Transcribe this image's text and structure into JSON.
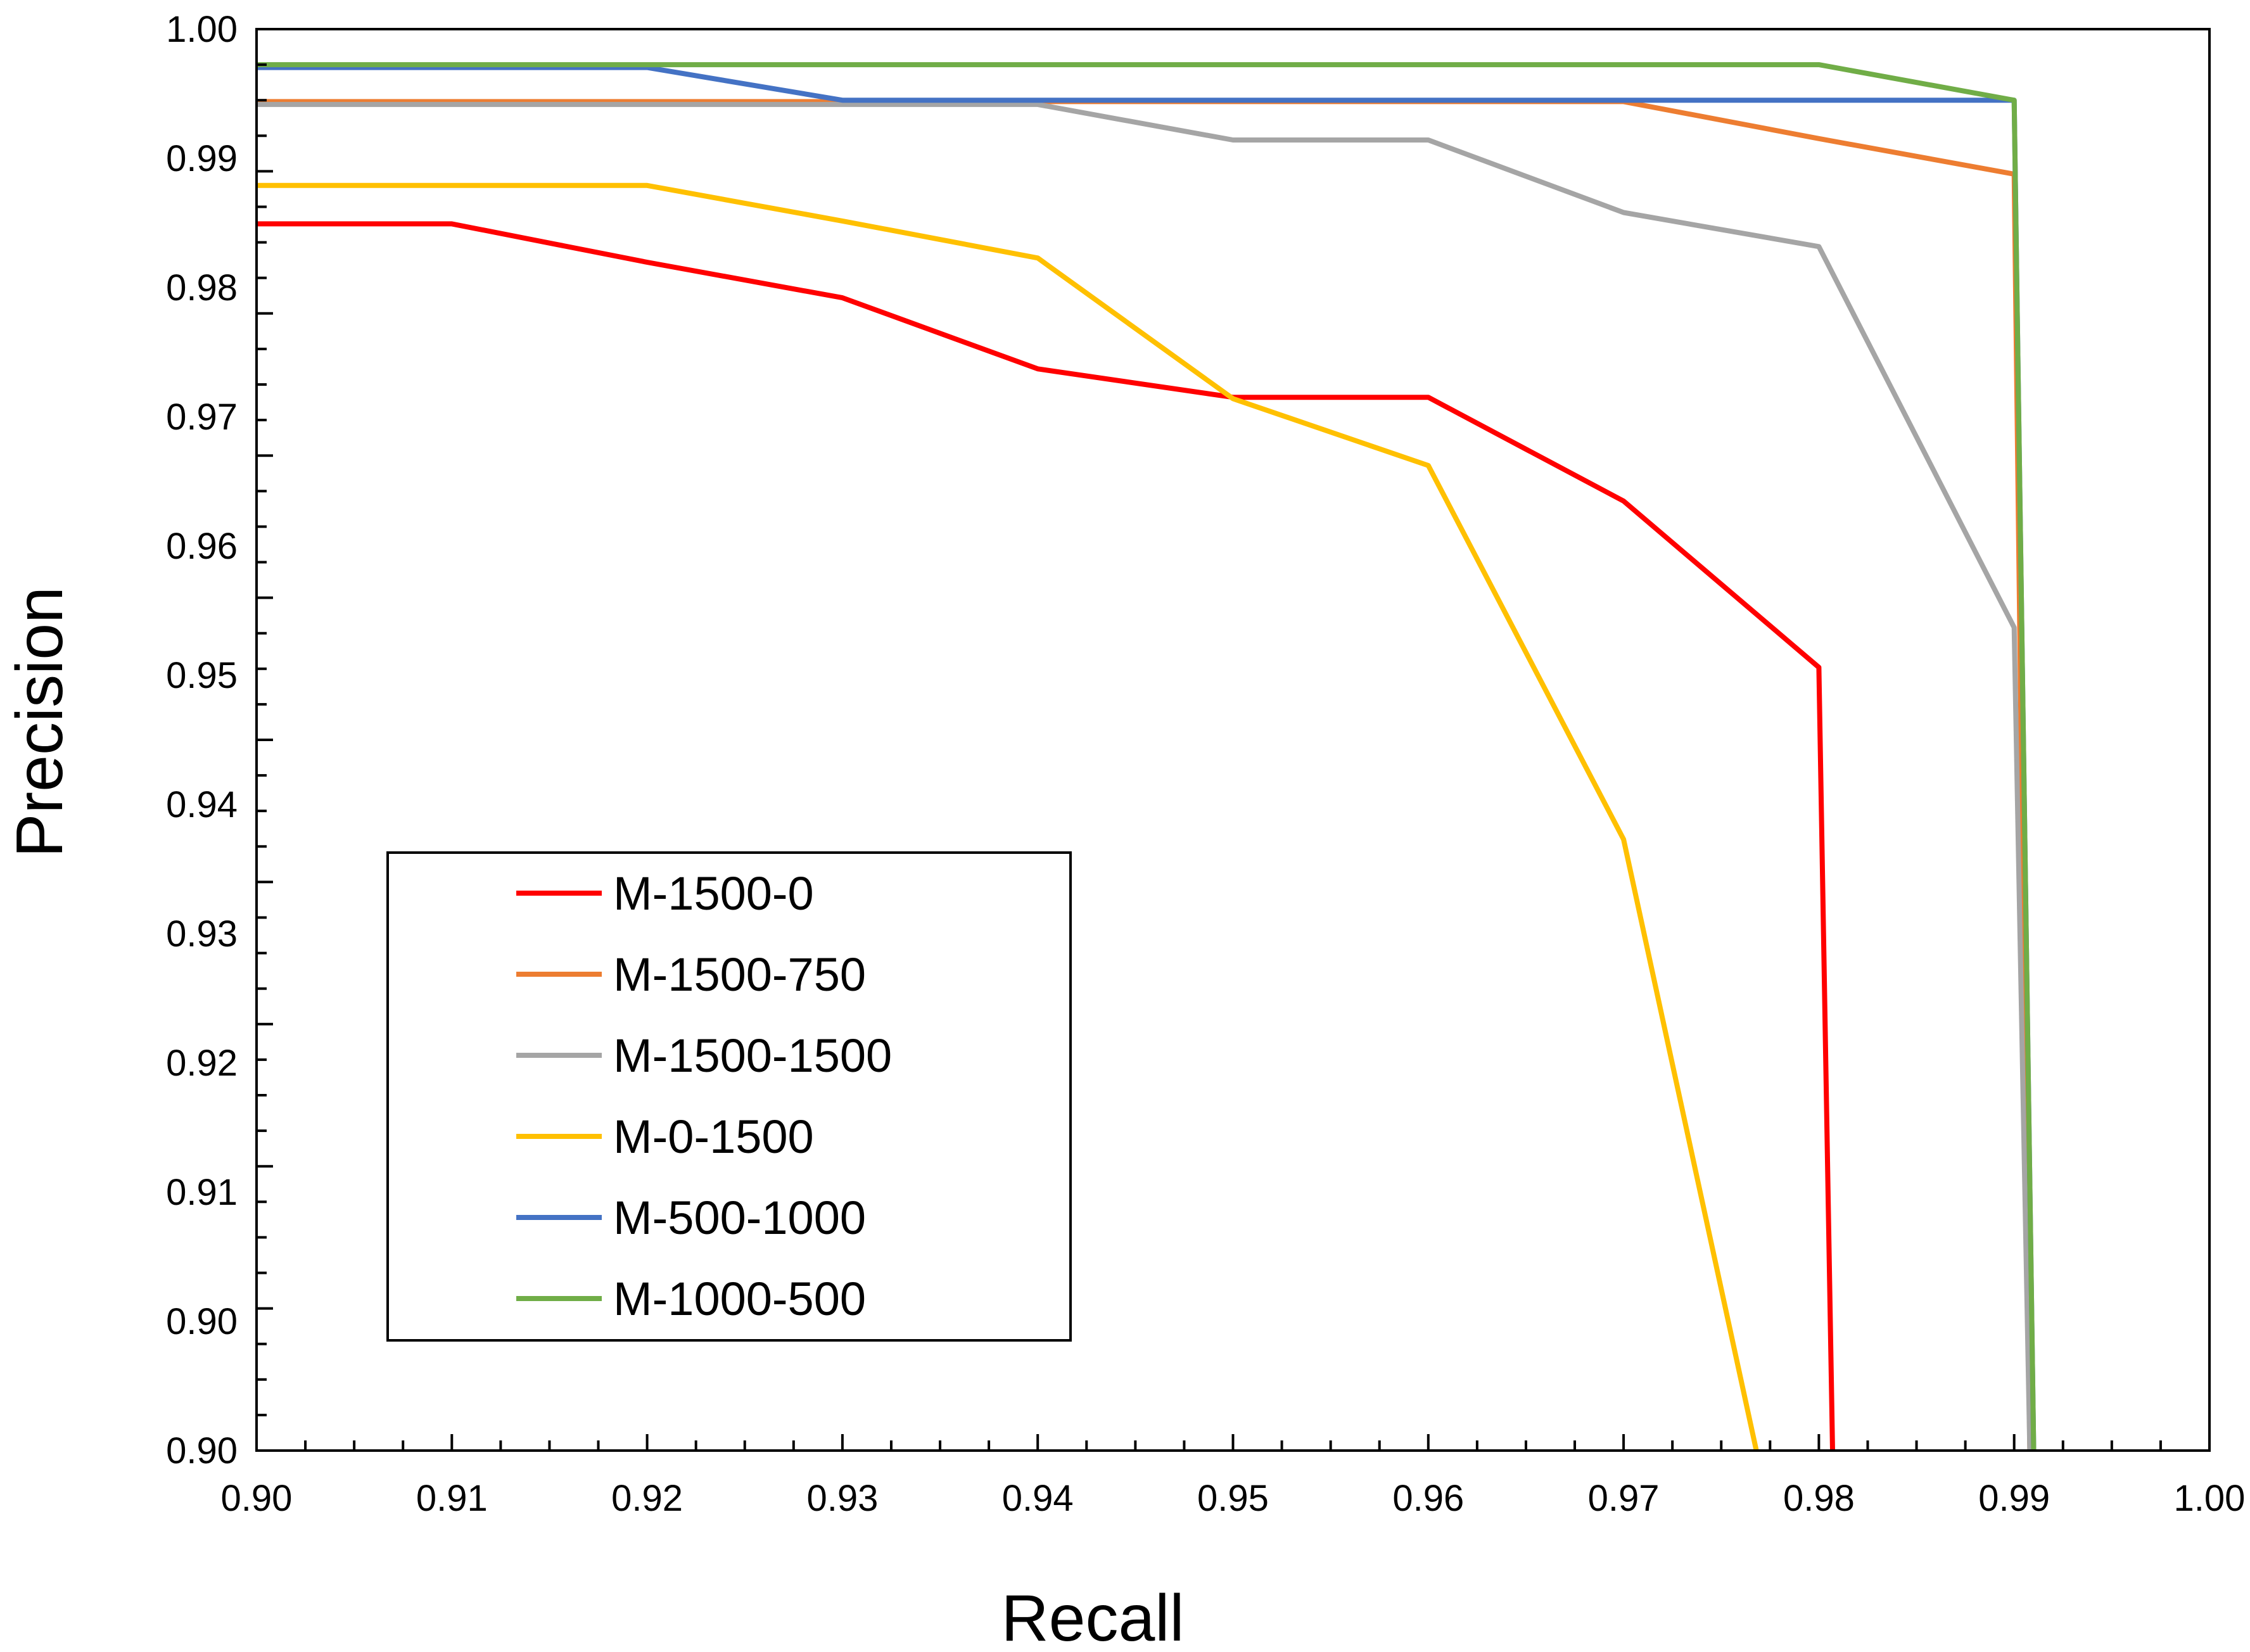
{
  "chart_data": {
    "type": "line",
    "title": "",
    "xlabel": "Recall",
    "ylabel": "Precision",
    "xlim": [
      0.9,
      1.0
    ],
    "ylim": [
      0.9,
      1.0
    ],
    "x_ticks": [
      "0.90",
      "0.91",
      "0.92",
      "0.93",
      "0.94",
      "0.95",
      "0.96",
      "0.97",
      "0.98",
      "0.99",
      "1.00"
    ],
    "y_ticks": [
      "0.90",
      "0.90",
      "0.91",
      "0.92",
      "0.93",
      "0.94",
      "0.95",
      "0.96",
      "0.97",
      "0.98",
      "0.99",
      "1.00"
    ],
    "y_tick_values": [
      0.9,
      0.9,
      0.91,
      0.92,
      0.93,
      0.94,
      0.95,
      0.96,
      0.97,
      0.98,
      0.99,
      1.0
    ],
    "legend_position": "lower-left",
    "grid": false,
    "series": [
      {
        "name": "M-1500-0",
        "color": "#ff0000",
        "points": [
          [
            0.9,
            0.9863
          ],
          [
            0.91,
            0.9863
          ],
          [
            0.92,
            0.9836
          ],
          [
            0.93,
            0.9811
          ],
          [
            0.94,
            0.9761
          ],
          [
            0.95,
            0.9741
          ],
          [
            0.96,
            0.9741
          ],
          [
            0.97,
            0.9668
          ],
          [
            0.98,
            0.9551
          ],
          [
            0.9807,
            0.9
          ]
        ]
      },
      {
        "name": "M-1500-750",
        "color": "#ed7d31",
        "points": [
          [
            0.9,
            0.9949
          ],
          [
            0.91,
            0.9949
          ],
          [
            0.92,
            0.9949
          ],
          [
            0.93,
            0.9949
          ],
          [
            0.94,
            0.9949
          ],
          [
            0.95,
            0.9949
          ],
          [
            0.96,
            0.9949
          ],
          [
            0.97,
            0.9949
          ],
          [
            0.98,
            0.9923
          ],
          [
            0.99,
            0.9898
          ],
          [
            0.9908,
            0.9
          ]
        ]
      },
      {
        "name": "M-1500-1500",
        "color": "#a5a5a5",
        "points": [
          [
            0.9,
            0.9947
          ],
          [
            0.91,
            0.9947
          ],
          [
            0.92,
            0.9947
          ],
          [
            0.93,
            0.9947
          ],
          [
            0.94,
            0.9947
          ],
          [
            0.95,
            0.9922
          ],
          [
            0.96,
            0.9922
          ],
          [
            0.97,
            0.9871
          ],
          [
            0.98,
            0.9847
          ],
          [
            0.99,
            0.9579
          ],
          [
            0.9908,
            0.9
          ]
        ]
      },
      {
        "name": "M-0-1500",
        "color": "#ffc000",
        "points": [
          [
            0.9,
            0.989
          ],
          [
            0.91,
            0.989
          ],
          [
            0.92,
            0.989
          ],
          [
            0.93,
            0.9865
          ],
          [
            0.94,
            0.9839
          ],
          [
            0.95,
            0.974
          ],
          [
            0.96,
            0.9693
          ],
          [
            0.97,
            0.943
          ],
          [
            0.9768,
            0.9
          ]
        ]
      },
      {
        "name": "M-500-1000",
        "color": "#4472c4",
        "points": [
          [
            0.9,
            0.9973
          ],
          [
            0.91,
            0.9973
          ],
          [
            0.92,
            0.9973
          ],
          [
            0.93,
            0.995
          ],
          [
            0.94,
            0.995
          ],
          [
            0.95,
            0.995
          ],
          [
            0.96,
            0.995
          ],
          [
            0.97,
            0.995
          ],
          [
            0.98,
            0.995
          ],
          [
            0.99,
            0.995
          ],
          [
            0.991,
            0.9
          ]
        ]
      },
      {
        "name": "M-1000-500",
        "color": "#70ad47",
        "points": [
          [
            0.9,
            0.9975
          ],
          [
            0.91,
            0.9975
          ],
          [
            0.92,
            0.9975
          ],
          [
            0.93,
            0.9975
          ],
          [
            0.94,
            0.9975
          ],
          [
            0.95,
            0.9975
          ],
          [
            0.96,
            0.9975
          ],
          [
            0.97,
            0.9975
          ],
          [
            0.98,
            0.9975
          ],
          [
            0.99,
            0.995
          ],
          [
            0.991,
            0.9
          ]
        ]
      }
    ]
  }
}
